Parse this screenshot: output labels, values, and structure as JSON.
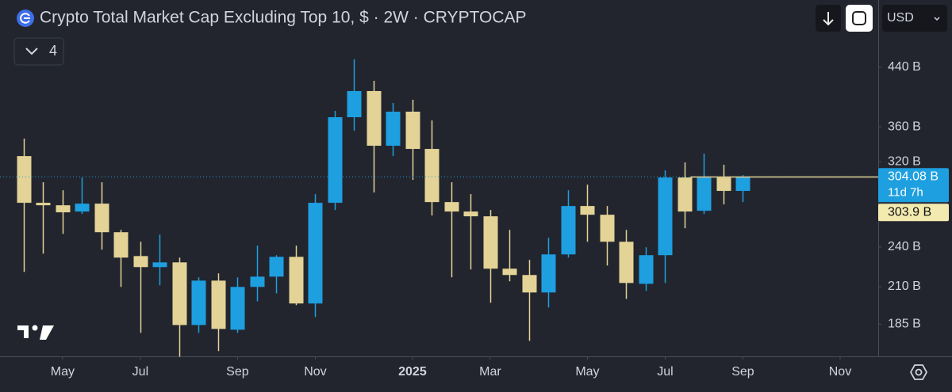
{
  "chart_data": {
    "type": "candlestick",
    "title": "Crypto Total Market Cap Excluding Top 10, $ · 2W · CRYPTOCAP",
    "indicator_count": "4",
    "currency": "USD",
    "log_scale": true,
    "up_color": "#1e9fe0",
    "down_color": "#e4d396",
    "categories": [
      null,
      null,
      null,
      null,
      null,
      null,
      null,
      null,
      null,
      null,
      null,
      null,
      null,
      null,
      null,
      null,
      null,
      null,
      null,
      null,
      null,
      null,
      null,
      null,
      null,
      null,
      null,
      null,
      null,
      null,
      null,
      null,
      null,
      null,
      null,
      null,
      null,
      null
    ],
    "open": [
      326.1,
      278.6,
      276.3,
      270.5,
      277.8,
      252.3,
      232.8,
      224.3,
      227.9,
      184.5,
      214.3,
      181.6,
      209.8,
      217.2,
      232.2,
      198.4,
      278.6,
      371.8,
      406.1,
      337.7,
      378.8,
      334.1,
      279.3,
      270.5,
      266.2,
      223.1,
      218.4,
      205.9,
      234.1,
      275.6,
      267.6,
      244.3,
      212.0,
      233.5,
      303.4,
      271.2,
      303.4,
      290.0
    ],
    "high": [
      345.9,
      298.6,
      290.7,
      303.4,
      298.6,
      254.3,
      244.3,
      250.3,
      231.6,
      216.7,
      219.6,
      216.7,
      241.1,
      233.5,
      241.1,
      286.9,
      379.8,
      451.9,
      420.4,
      390.1,
      394.3,
      367.8,
      298.6,
      286.9,
      271.9,
      254.3,
      229.8,
      247.6,
      290.7,
      296.2,
      275.6,
      254.3,
      239.8,
      310.8,
      319.2,
      328.8,
      316.7,
      305.9
    ],
    "low": [
      220.7,
      234.7,
      250.9,
      268.3,
      237.9,
      209.8,
      179.7,
      210.9,
      165.8,
      179.7,
      169.0,
      179.7,
      199.9,
      205.3,
      197.3,
      189.6,
      271.9,
      355.2,
      288.4,
      326.1,
      301.0,
      266.9,
      216.7,
      222.5,
      198.9,
      213.8,
      174.9,
      195.7,
      231.6,
      244.3,
      225.5,
      201.5,
      207.0,
      212.6,
      255.7,
      268.3,
      277.1,
      279.3
    ],
    "close": [
      278.6,
      276.3,
      269.8,
      277.8,
      252.3,
      231.6,
      224.3,
      227.9,
      184.5,
      214.3,
      182.1,
      209.8,
      217.2,
      232.2,
      198.4,
      278.6,
      371.8,
      406.1,
      337.7,
      378.8,
      334.1,
      279.3,
      270.5,
      266.2,
      223.1,
      218.4,
      205.9,
      234.1,
      275.6,
      267.6,
      244.3,
      212.6,
      233.5,
      303.4,
      270.5,
      303.4,
      290.0,
      304.08
    ],
    "last_price": {
      "value": 304.08,
      "label": "304.08 B"
    },
    "countdown": "11d 7h",
    "reference_price": {
      "value": 303.9,
      "label": "303.9 B"
    },
    "ylim": [
      166,
      552
    ],
    "yticks": [
      {
        "value": 185,
        "label": "185 B"
      },
      {
        "value": 210,
        "label": "210 B"
      },
      {
        "value": 240,
        "label": "240 B"
      },
      {
        "value": 320,
        "label": "320 B"
      },
      {
        "value": 360,
        "label": "360 B"
      },
      {
        "value": 440,
        "label": "440 B"
      }
    ],
    "xlim": [
      -1.22,
      43.96
    ],
    "xticks": [
      {
        "value": 2,
        "label": "May"
      },
      {
        "value": 6,
        "label": "Jul"
      },
      {
        "value": 11,
        "label": "Sep"
      },
      {
        "value": 15,
        "label": "Nov"
      },
      {
        "value": 20,
        "label": "2025"
      },
      {
        "value": 24,
        "label": "Mar"
      },
      {
        "value": 29,
        "label": "May"
      },
      {
        "value": 33,
        "label": "Jul"
      },
      {
        "value": 37,
        "label": "Sep"
      },
      {
        "value": 42,
        "label": "Nov"
      }
    ]
  }
}
